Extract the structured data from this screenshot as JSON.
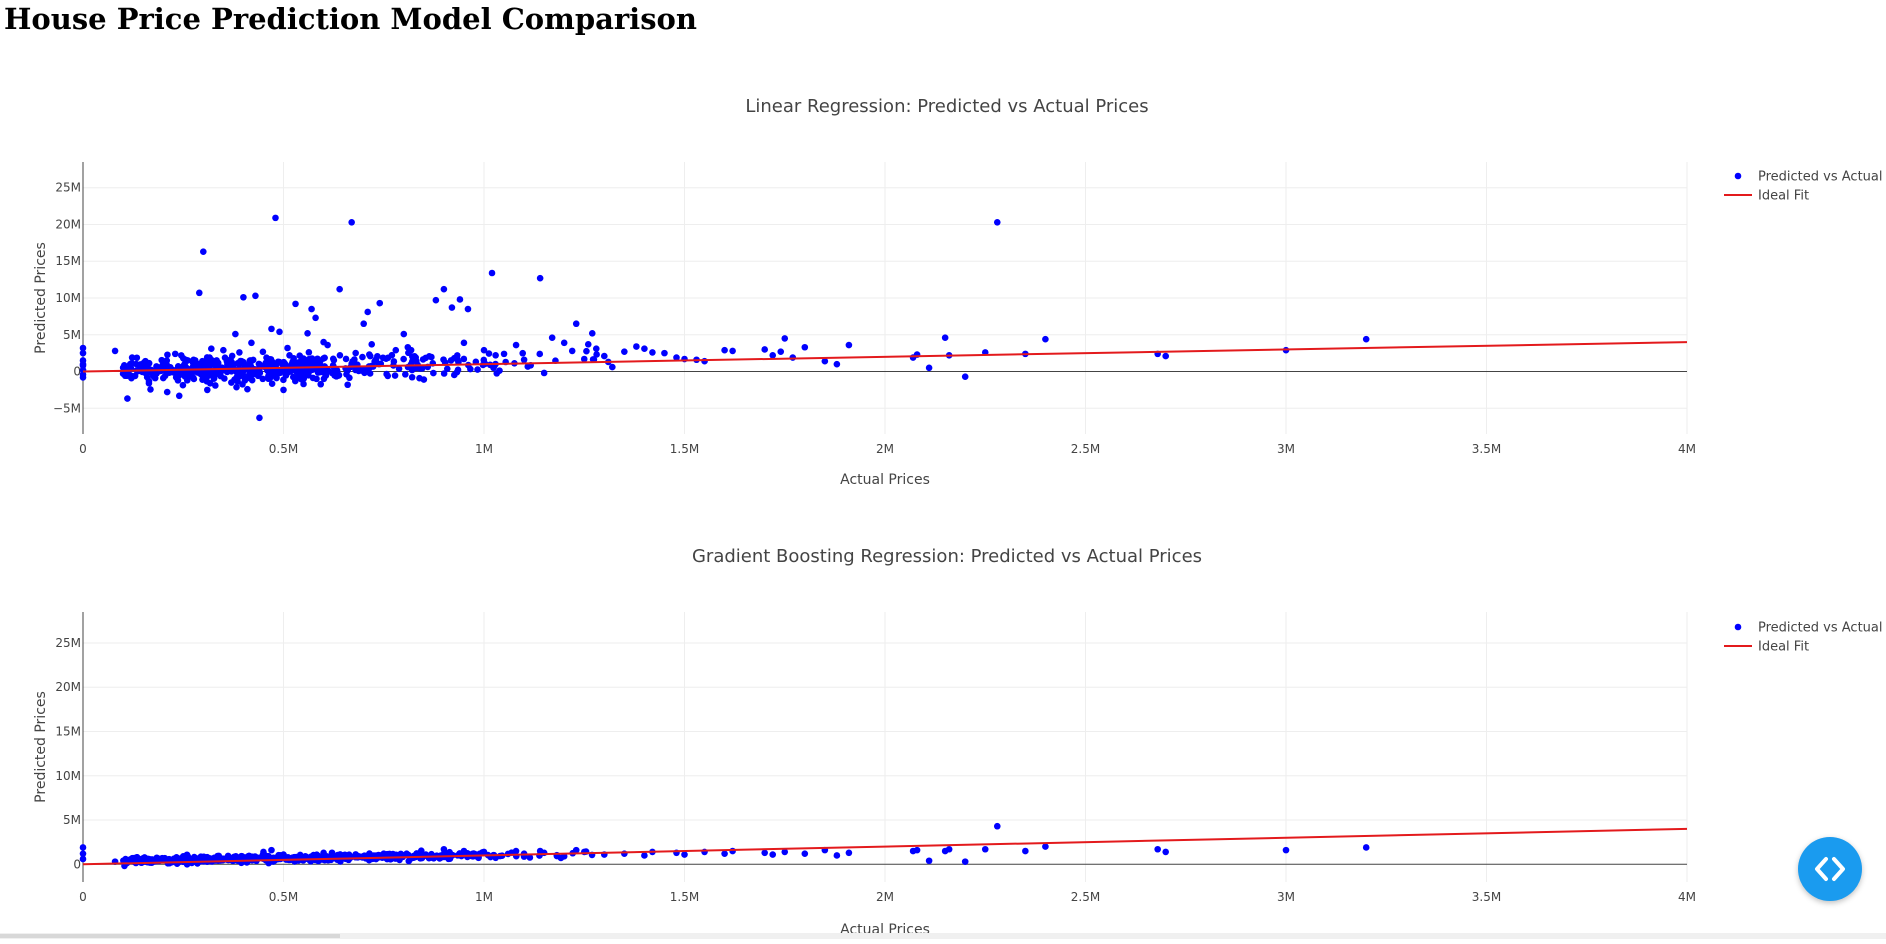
{
  "page": {
    "title": "House Price Prediction Model Comparison"
  },
  "chart_data": [
    {
      "type": "scatter",
      "title": "Linear Regression: Predicted vs Actual Prices",
      "xlabel": "Actual Prices",
      "ylabel": "Predicted Prices",
      "xlim": [
        0,
        4000000
      ],
      "ylim": [
        -8500000,
        28500000
      ],
      "x_ticks": [
        0,
        500000,
        1000000,
        1500000,
        2000000,
        2500000,
        3000000,
        3500000,
        4000000
      ],
      "x_tick_labels": [
        "0",
        "0.5M",
        "1M",
        "1.5M",
        "2M",
        "2.5M",
        "3M",
        "3.5M",
        "4M"
      ],
      "y_ticks": [
        -5000000,
        0,
        5000000,
        10000000,
        15000000,
        20000000,
        25000000
      ],
      "y_tick_labels": [
        "−5M",
        "0",
        "5M",
        "10M",
        "15M",
        "20M",
        "25M"
      ],
      "grid": true,
      "legend_position": "top-right",
      "legend": [
        "Predicted vs Actual",
        "Ideal Fit"
      ],
      "colors": {
        "points": "#0000ff",
        "ideal_line": "#e31a1c"
      },
      "ideal_fit": {
        "x": [
          0,
          4000000
        ],
        "y": [
          0,
          4000000
        ]
      },
      "dense_cluster_count": 520,
      "series": [
        {
          "name": "Predicted vs Actual",
          "x": [
            0,
            0,
            0,
            0,
            0,
            0,
            0,
            0,
            80000,
            100000,
            130000,
            160000,
            180000,
            200000,
            210000,
            230000,
            240000,
            250000,
            260000,
            280000,
            290000,
            300000,
            310000,
            320000,
            330000,
            340000,
            350000,
            360000,
            370000,
            380000,
            390000,
            400000,
            405000,
            410000,
            420000,
            430000,
            440000,
            450000,
            460000,
            470000,
            480000,
            490000,
            500000,
            510000,
            515000,
            530000,
            550000,
            560000,
            570000,
            580000,
            600000,
            610000,
            640000,
            660000,
            670000,
            700000,
            710000,
            720000,
            740000,
            760000,
            780000,
            800000,
            810000,
            850000,
            880000,
            900000,
            920000,
            940000,
            950000,
            960000,
            1000000,
            1020000,
            1050000,
            1080000,
            1100000,
            1140000,
            1150000,
            1170000,
            1200000,
            1220000,
            1230000,
            1250000,
            1260000,
            1270000,
            1280000,
            1300000,
            1310000,
            1320000,
            1350000,
            1380000,
            1400000,
            1420000,
            1450000,
            1480000,
            1500000,
            1530000,
            1550000,
            1600000,
            1620000,
            1700000,
            1720000,
            1740000,
            1750000,
            1770000,
            1800000,
            1850000,
            1880000,
            1910000,
            2070000,
            2080000,
            2110000,
            2150000,
            2160000,
            2250000,
            2200000,
            2280000,
            2350000,
            2400000,
            2680000,
            2700000,
            3000000,
            3200000
          ],
          "y": [
            3200000,
            2500000,
            1500000,
            800000,
            200000,
            -400000,
            -800000,
            1000000,
            2800000,
            -300000,
            -600000,
            200000,
            -900000,
            1300000,
            -2800000,
            2400000,
            -3300000,
            1800000,
            -1200000,
            1500000,
            10700000,
            16300000,
            -2500000,
            3100000,
            -1900000,
            500000,
            2900000,
            1000000,
            -1500000,
            5100000,
            2600000,
            10100000,
            -1000000,
            -2400000,
            3900000,
            10300000,
            -6300000,
            700000,
            1300000,
            5800000,
            20900000,
            5400000,
            -2500000,
            3200000,
            2200000,
            9200000,
            -1700000,
            5200000,
            8500000,
            7300000,
            4000000,
            3600000,
            11200000,
            -1800000,
            20300000,
            6500000,
            8100000,
            3700000,
            9300000,
            -600000,
            2900000,
            5100000,
            3300000,
            -1100000,
            9700000,
            11200000,
            8700000,
            9800000,
            3900000,
            8500000,
            2900000,
            13400000,
            2400000,
            3600000,
            1600000,
            12700000,
            -200000,
            4600000,
            3900000,
            2800000,
            6500000,
            1700000,
            3700000,
            5200000,
            3100000,
            2100000,
            1300000,
            600000,
            2700000,
            3400000,
            3100000,
            2600000,
            2500000,
            1900000,
            1700000,
            1600000,
            1400000,
            2900000,
            2800000,
            3000000,
            2200000,
            2700000,
            4500000,
            1900000,
            3300000,
            1400000,
            1000000,
            3600000,
            1900000,
            2300000,
            500000,
            4600000,
            2200000,
            2600000,
            -700000,
            20300000,
            2400000,
            4400000,
            2400000,
            2100000,
            2900000,
            4400000
          ]
        },
        {
          "name": "Ideal Fit",
          "x": [
            0,
            4000000
          ],
          "y": [
            0,
            4000000
          ]
        }
      ]
    },
    {
      "type": "scatter",
      "title": "Gradient Boosting Regression: Predicted vs Actual Prices",
      "xlabel": "Actual Prices",
      "ylabel": "Predicted Prices",
      "xlim": [
        0,
        4000000
      ],
      "ylim": [
        -2000000,
        28500000
      ],
      "x_ticks": [
        0,
        500000,
        1000000,
        1500000,
        2000000,
        2500000,
        3000000,
        3500000,
        4000000
      ],
      "x_tick_labels": [
        "0",
        "0.5M",
        "1M",
        "1.5M",
        "2M",
        "2.5M",
        "3M",
        "3.5M",
        "4M"
      ],
      "y_ticks": [
        0,
        5000000,
        10000000,
        15000000,
        20000000,
        25000000
      ],
      "y_tick_labels": [
        "0",
        "5M",
        "10M",
        "15M",
        "20M",
        "25M"
      ],
      "grid": true,
      "legend_position": "top-right",
      "legend": [
        "Predicted vs Actual",
        "Ideal Fit"
      ],
      "colors": {
        "points": "#0000ff",
        "ideal_line": "#e31a1c"
      },
      "ideal_fit": {
        "x": [
          0,
          4000000
        ],
        "y": [
          0,
          4000000
        ]
      },
      "dense_cluster_count": 560,
      "series": [
        {
          "name": "Predicted vs Actual",
          "x": [
            0,
            0,
            0,
            80000,
            150000,
            250000,
            450000,
            470000,
            500000,
            600000,
            650000,
            750000,
            900000,
            950000,
            1000000,
            1100000,
            1140000,
            1150000,
            1200000,
            1230000,
            1250000,
            1300000,
            1350000,
            1400000,
            1420000,
            1480000,
            1500000,
            1550000,
            1600000,
            1620000,
            1700000,
            1720000,
            1750000,
            1800000,
            1850000,
            1880000,
            1910000,
            2070000,
            2080000,
            2110000,
            2150000,
            2160000,
            2200000,
            2250000,
            2280000,
            2350000,
            2400000,
            2680000,
            2700000,
            3000000,
            3200000
          ],
          "y": [
            1900000,
            1200000,
            600000,
            300000,
            600000,
            900000,
            1400000,
            1600000,
            1100000,
            1300000,
            1000000,
            1200000,
            1700000,
            1500000,
            1400000,
            1200000,
            1500000,
            1300000,
            900000,
            1600000,
            1400000,
            1100000,
            1200000,
            1000000,
            1400000,
            1300000,
            1100000,
            1400000,
            1200000,
            1500000,
            1300000,
            1100000,
            1400000,
            1200000,
            1600000,
            1000000,
            1300000,
            1500000,
            1600000,
            400000,
            1500000,
            1700000,
            300000,
            1700000,
            4300000,
            1500000,
            2000000,
            1700000,
            1400000,
            1600000,
            1900000
          ]
        },
        {
          "name": "Ideal Fit",
          "x": [
            0,
            4000000
          ],
          "y": [
            0,
            4000000
          ]
        }
      ]
    }
  ],
  "fab": {
    "icon": "code-brackets-icon",
    "color": "#1a9bef"
  }
}
